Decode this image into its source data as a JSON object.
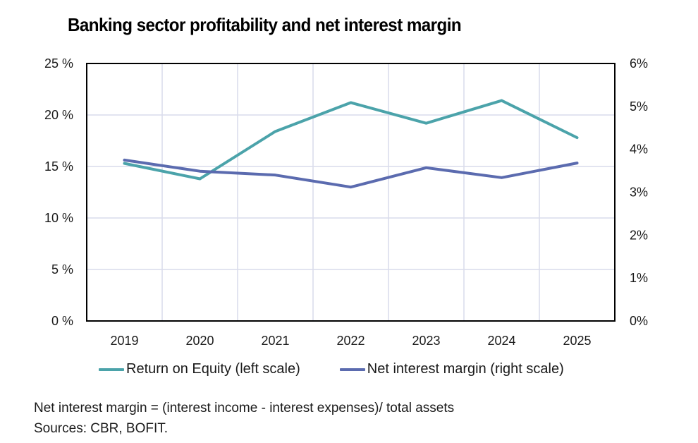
{
  "chart_data": {
    "type": "line",
    "title": "Banking sector profitability and net interest margin",
    "categories": [
      "2019",
      "2020",
      "2021",
      "2022",
      "2023",
      "2024",
      "2025"
    ],
    "series": [
      {
        "name": "Return on Equity (left scale)",
        "axis": "left",
        "color": "#4BA3AA",
        "values": [
          15.3,
          13.8,
          18.4,
          21.2,
          19.2,
          21.4,
          17.8
        ]
      },
      {
        "name": "Net interest margin (right scale)",
        "axis": "right",
        "color": "#5B6BAF",
        "values": [
          3.75,
          3.49,
          3.4,
          3.12,
          3.57,
          3.34,
          3.68
        ]
      }
    ],
    "left_axis": {
      "ylim": [
        0,
        25
      ],
      "ticks": [
        0,
        5,
        10,
        15,
        20,
        25
      ],
      "tick_labels": [
        "0 %",
        "5 %",
        "10 %",
        "15 %",
        "20 %",
        "25 %"
      ],
      "unit": "%"
    },
    "right_axis": {
      "ylim": [
        0,
        6
      ],
      "ticks": [
        0,
        1,
        2,
        3,
        4,
        5,
        6
      ],
      "tick_labels": [
        "0%",
        "1%",
        "2%",
        "3%",
        "4%",
        "5%",
        "6%"
      ],
      "unit": "%"
    },
    "xlabel": "",
    "ylabel_left": "",
    "ylabel_right": "",
    "grid": true,
    "legend_position": "bottom",
    "grid_color": "#D9DCEB",
    "frame_color": "#000000"
  },
  "footnotes": {
    "definition": "Net interest margin = (interest income - interest expenses)/ total assets",
    "sources": "Sources: CBR, BOFIT."
  }
}
